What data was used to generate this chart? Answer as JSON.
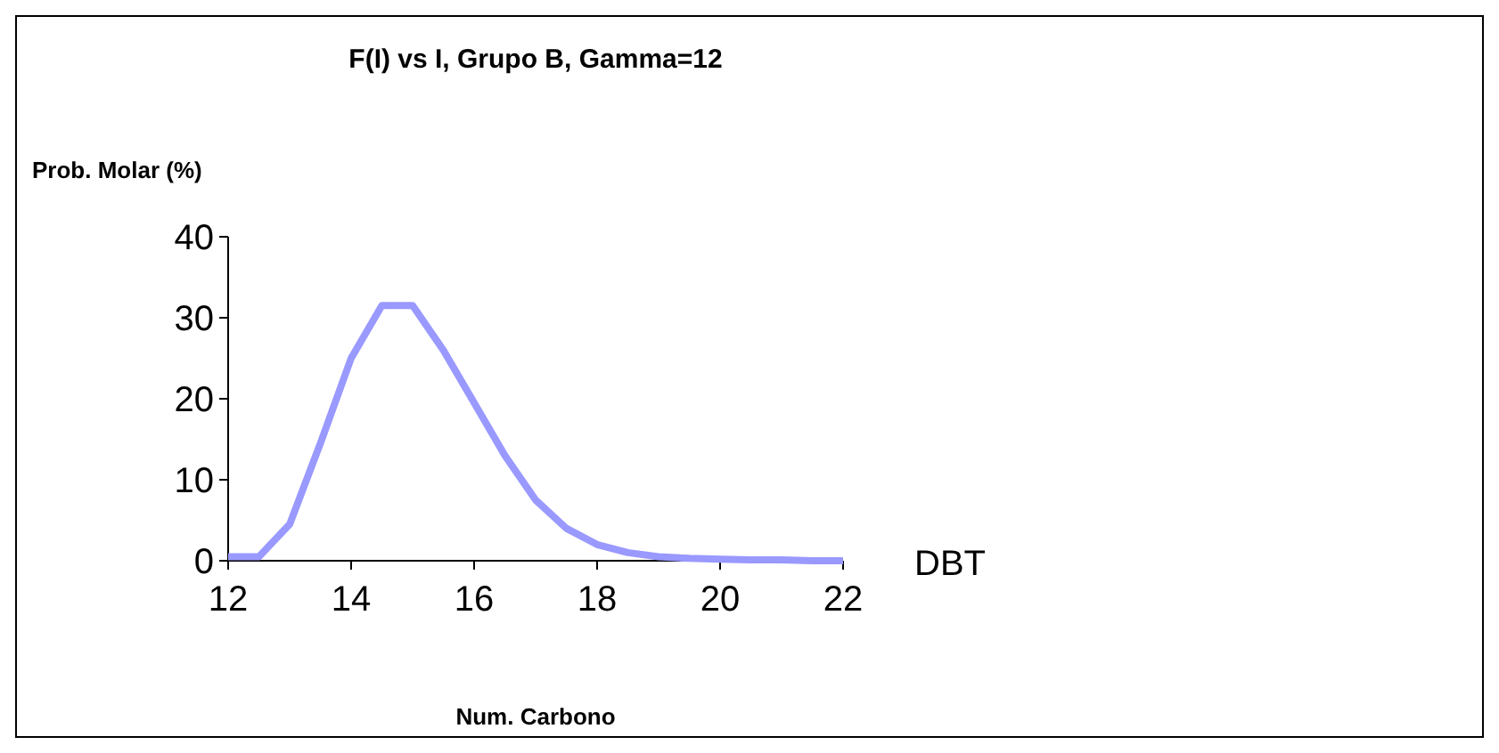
{
  "chart_data": {
    "type": "line",
    "title": "F(I) vs I, Grupo B, Gamma=12",
    "xlabel": "Num. Carbono",
    "ylabel": "Prob. Molar (%)",
    "x": [
      12,
      12.5,
      13,
      13.5,
      14,
      14.5,
      15,
      15.5,
      16,
      16.5,
      17,
      17.5,
      18,
      18.5,
      19,
      19.5,
      20,
      20.5,
      21,
      21.5,
      22
    ],
    "series": [
      {
        "name": "DBT",
        "color": "#9999ff",
        "values": [
          0.5,
          0.5,
          4.5,
          14.5,
          25,
          31.5,
          31.5,
          26,
          19.5,
          13,
          7.5,
          4,
          2,
          1,
          0.5,
          0.3,
          0.2,
          0.1,
          0.1,
          0,
          0
        ]
      }
    ],
    "xlim": [
      12,
      22
    ],
    "xticks": [
      12,
      14,
      16,
      18,
      20,
      22
    ],
    "ylim": [
      0,
      40
    ],
    "yticks": [
      0,
      10,
      20,
      30,
      40
    ],
    "grid": false,
    "marker": "none",
    "line_style": "solid"
  }
}
